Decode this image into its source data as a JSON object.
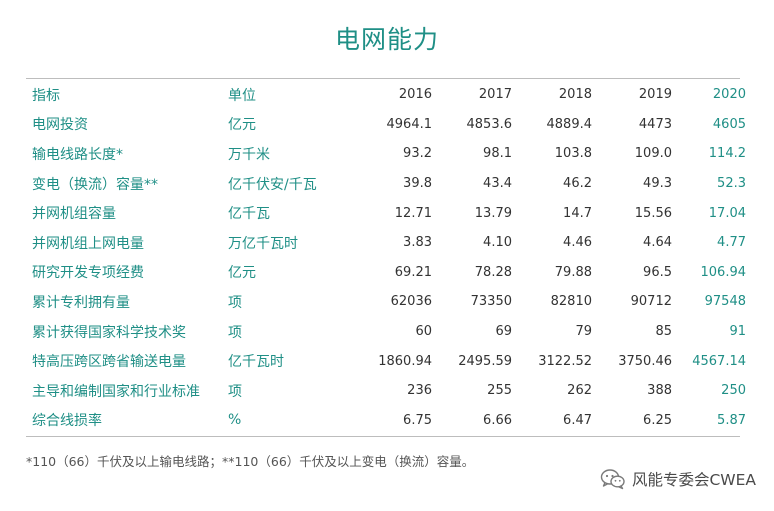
{
  "title": "电网能力",
  "header": {
    "indicator": "指标",
    "unit": "单位",
    "years": [
      "2016",
      "2017",
      "2018",
      "2019",
      "2020"
    ]
  },
  "rows": [
    {
      "indicator": "电网投资",
      "unit": "亿元",
      "values": [
        "4964.1",
        "4853.6",
        "4889.4",
        "4473",
        "4605"
      ]
    },
    {
      "indicator": "输电线路长度*",
      "unit": "万千米",
      "values": [
        "93.2",
        "98.1",
        "103.8",
        "109.0",
        "114.2"
      ]
    },
    {
      "indicator": "变电（换流）容量**",
      "unit": "亿千伏安/千瓦",
      "values": [
        "39.8",
        "43.4",
        "46.2",
        "49.3",
        "52.3"
      ]
    },
    {
      "indicator": "并网机组容量",
      "unit": "亿千瓦",
      "values": [
        "12.71",
        "13.79",
        "14.7",
        "15.56",
        "17.04"
      ]
    },
    {
      "indicator": "并网机组上网电量",
      "unit": "万亿千瓦时",
      "values": [
        "3.83",
        "4.10",
        "4.46",
        "4.64",
        "4.77"
      ]
    },
    {
      "indicator": "研究开发专项经费",
      "unit": "亿元",
      "values": [
        "69.21",
        "78.28",
        "79.88",
        "96.5",
        "106.94"
      ]
    },
    {
      "indicator": "累计专利拥有量",
      "unit": "项",
      "values": [
        "62036",
        "73350",
        "82810",
        "90712",
        "97548"
      ]
    },
    {
      "indicator": "累计获得国家科学技术奖",
      "unit": "项",
      "values": [
        "60",
        "69",
        "79",
        "85",
        "91"
      ]
    },
    {
      "indicator": "特高压跨区跨省输送电量",
      "unit": "亿千瓦时",
      "values": [
        "1860.94",
        "2495.59",
        "3122.52",
        "3750.46",
        "4567.14"
      ]
    },
    {
      "indicator": "主导和编制国家和行业标准",
      "unit": "项",
      "values": [
        "236",
        "255",
        "262",
        "388",
        "250"
      ]
    },
    {
      "indicator": "综合线损率",
      "unit": "%",
      "values": [
        "6.75",
        "6.66",
        "6.47",
        "6.25",
        "5.87"
      ]
    }
  ],
  "footnote": "*110（66）千伏及以上输电线路；**110（66）千伏及以上变电（换流）容量。",
  "watermark": {
    "text": "风能专委会CWEA",
    "icon": "wechat-icon"
  },
  "colors": {
    "accent": "#1f8f86",
    "text": "#333333",
    "rule": "#bdbdbd"
  }
}
